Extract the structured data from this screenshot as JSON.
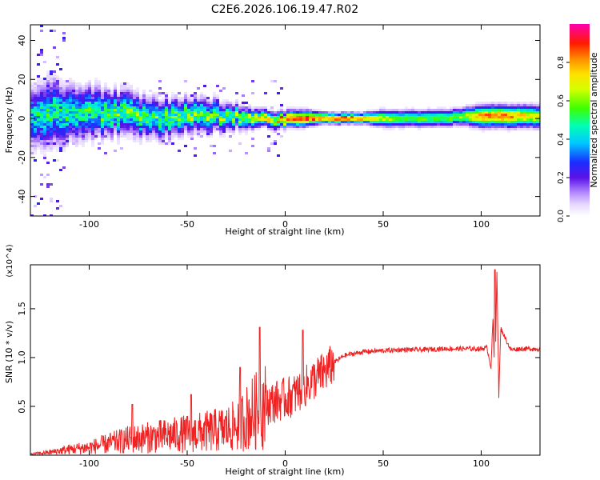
{
  "title": "C2E6.2026.106.19.47.R02",
  "chart_data": [
    {
      "type": "heatmap",
      "title": "C2E6.2026.106.19.47.R02",
      "xlabel": "Height of straight line (km)",
      "ylabel": "Frequency (Hz)",
      "xlim": [
        -130,
        130
      ],
      "ylim": [
        -50,
        48
      ],
      "x_ticks": [
        -100,
        -50,
        0,
        50,
        100
      ],
      "y_ticks": [
        -40,
        -20,
        0,
        20,
        40
      ],
      "grid": false,
      "colorbar": {
        "label": "Normalized spectral amplitude",
        "range": [
          0.0,
          1.0
        ],
        "ticks": [
          0.0,
          0.2,
          0.4,
          0.6,
          0.8
        ],
        "colormap": "rainbow (white-violet-blue-cyan-green-yellow-red-magenta)"
      },
      "ridge": {
        "description": "Dominant spectral band centred near 0 Hz; broad and noisy below 0 km, narrow and stable above 0 km",
        "x": [
          -130,
          -120,
          -110,
          -100,
          -90,
          -80,
          -70,
          -60,
          -50,
          -40,
          -30,
          -20,
          -10,
          0,
          10,
          20,
          30,
          40,
          50,
          60,
          70,
          80,
          90,
          100,
          110,
          130
        ],
        "center_hz": [
          0,
          2,
          4,
          3,
          3,
          2,
          1,
          0,
          2,
          2,
          1,
          1,
          0,
          0,
          0,
          0,
          0,
          0,
          0,
          0,
          0,
          0,
          1,
          1,
          1,
          1
        ],
        "halfwidth_hz": [
          10,
          12,
          10,
          9,
          8,
          8,
          7,
          7,
          6,
          6,
          5,
          4,
          3,
          3,
          3,
          2,
          2,
          2,
          3,
          3,
          3,
          3,
          3,
          4,
          4,
          4
        ],
        "peak_amplitude": [
          0.5,
          0.55,
          0.55,
          0.55,
          0.6,
          0.6,
          0.6,
          0.6,
          0.65,
          0.65,
          0.65,
          0.7,
          0.8,
          0.9,
          0.95,
          0.9,
          0.9,
          0.8,
          0.7,
          0.6,
          0.6,
          0.6,
          0.65,
          0.85,
          0.9,
          0.7
        ]
      }
    },
    {
      "type": "line",
      "xlabel": "Height of straight line (km)",
      "ylabel": "SNR (10 * v/v)",
      "y_multiplier": "(x10^4)",
      "xlim": [
        -130,
        130
      ],
      "ylim": [
        0,
        1.95
      ],
      "x_ticks": [
        -100,
        -50,
        0,
        50,
        100
      ],
      "y_ticks": [
        0.5,
        1.0,
        1.5
      ],
      "grid": false,
      "series": [
        {
          "name": "SNR",
          "color": "#ee2222",
          "x": [
            -130,
            -120,
            -110,
            -100,
            -90,
            -80,
            -70,
            -60,
            -50,
            -40,
            -30,
            -25,
            -20,
            -15,
            -10,
            -5,
            0,
            5,
            10,
            15,
            20,
            25,
            30,
            40,
            50,
            60,
            70,
            80,
            90,
            100,
            103,
            105,
            106,
            107,
            108,
            109,
            110,
            115,
            120,
            130
          ],
          "values": [
            0.01,
            0.03,
            0.06,
            0.08,
            0.12,
            0.16,
            0.18,
            0.2,
            0.22,
            0.24,
            0.27,
            0.3,
            0.38,
            0.45,
            0.52,
            0.55,
            0.58,
            0.62,
            0.7,
            0.78,
            0.85,
            0.95,
            1.02,
            1.06,
            1.07,
            1.08,
            1.08,
            1.09,
            1.09,
            1.09,
            1.1,
            0.9,
            1.4,
            0.7,
            1.9,
            0.6,
            1.3,
            1.08,
            1.09,
            1.09
          ],
          "spikes": [
            {
              "x": -78,
              "value": 0.52
            },
            {
              "x": -48,
              "value": 0.62
            },
            {
              "x": -23,
              "value": 0.9
            },
            {
              "x": -13,
              "value": 1.31
            },
            {
              "x": 9,
              "value": 1.28
            },
            {
              "x": 107,
              "value": 1.9
            }
          ]
        }
      ]
    }
  ]
}
